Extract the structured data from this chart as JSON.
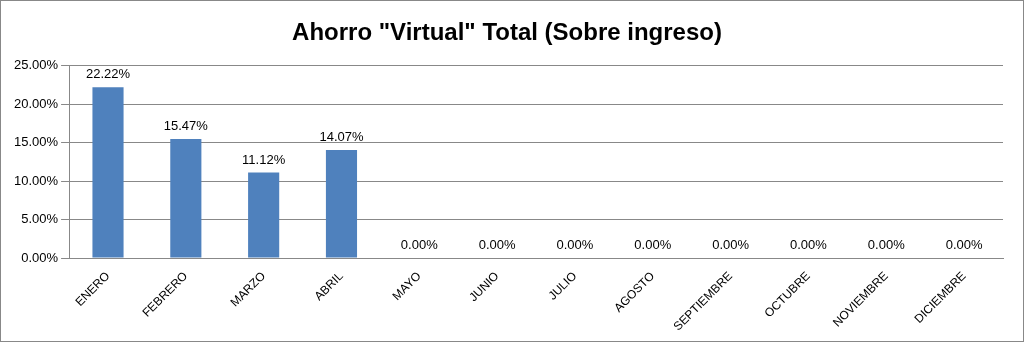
{
  "chart_data": {
    "type": "bar",
    "title": "Ahorro \"Virtual\" Total (Sobre ingreso)",
    "categories": [
      "ENERO",
      "FEBRERO",
      "MARZO",
      "ABRIL",
      "MAYO",
      "JUNIO",
      "JULIO",
      "AGOSTO",
      "SEPTIEMBRE",
      "OCTUBRE",
      "NOVIEMBRE",
      "DICIEMBRE"
    ],
    "values": [
      22.22,
      15.47,
      11.12,
      14.07,
      0,
      0,
      0,
      0,
      0,
      0,
      0,
      0
    ],
    "value_labels": [
      "22.22%",
      "15.47%",
      "11.12%",
      "14.07%",
      "0.00%",
      "0.00%",
      "0.00%",
      "0.00%",
      "0.00%",
      "0.00%",
      "0.00%",
      "0.00%"
    ],
    "color": "#4f81bd",
    "ylim": [
      0,
      25
    ],
    "yticks": [
      {
        "value": 0,
        "label": "0.00%"
      },
      {
        "value": 5,
        "label": "5.00%"
      },
      {
        "value": 10,
        "label": "10.00%"
      },
      {
        "value": 15,
        "label": "15.00%"
      },
      {
        "value": 20,
        "label": "20.00%"
      },
      {
        "value": 25,
        "label": "25.00%"
      }
    ],
    "grid": "y",
    "legend": false
  }
}
